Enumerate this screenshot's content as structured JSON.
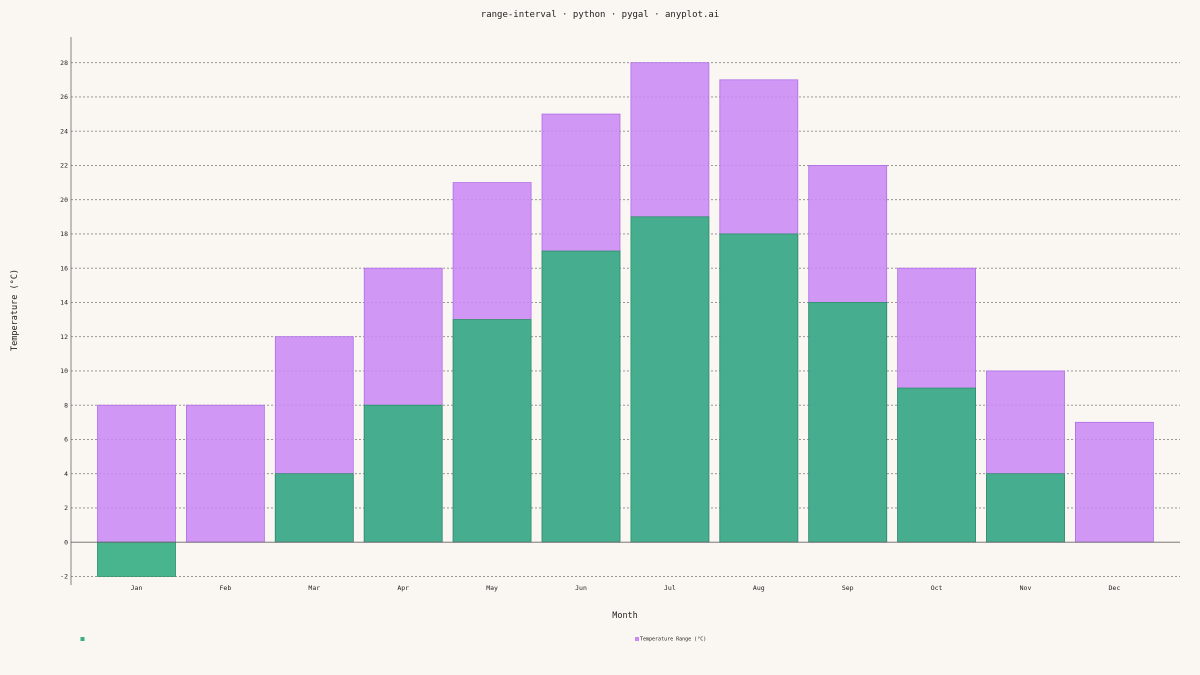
{
  "chart_data": {
    "type": "bar",
    "title": "range-interval · python · pygal · anyplot.ai",
    "xlabel": "Month",
    "ylabel": "Temperature (°C)",
    "ylim": [
      -2.5,
      29.5
    ],
    "yticks": [
      -2,
      0,
      2,
      4,
      6,
      8,
      10,
      12,
      14,
      16,
      18,
      20,
      22,
      24,
      26,
      28
    ],
    "grid": true,
    "legend_position": "bottom",
    "categories": [
      "Jan",
      "Feb",
      "Mar",
      "Apr",
      "May",
      "Jun",
      "Jul",
      "Aug",
      "Sep",
      "Oct",
      "Nov",
      "Dec"
    ],
    "series": [
      {
        "name": "",
        "color": "#3aaf85",
        "values": [
          -2,
          0,
          4,
          8,
          13,
          17,
          19,
          18,
          14,
          9,
          4,
          0
        ]
      },
      {
        "name": "Temperature Range (°C)",
        "color": "#c98af5",
        "values": [
          8,
          8,
          12,
          16,
          21,
          25,
          28,
          27,
          22,
          16,
          10,
          7
        ]
      }
    ]
  }
}
